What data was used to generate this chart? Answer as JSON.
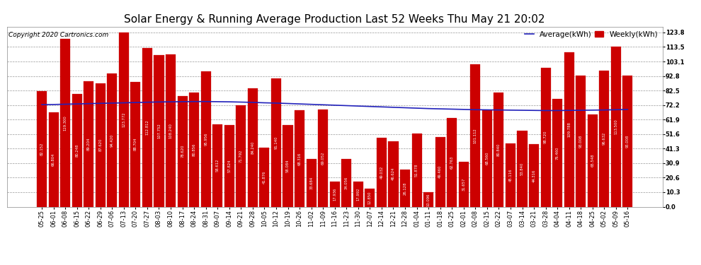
{
  "title": "Solar Energy & Running Average Production Last 52 Weeks Thu May 21 20:02",
  "copyright": "Copyright 2020 Cartronics.com",
  "legend_avg": "Average(kWh)",
  "legend_weekly": "Weekly(kWh)",
  "categories": [
    "05-25",
    "06-01",
    "06-08",
    "06-15",
    "06-22",
    "06-29",
    "07-06",
    "07-13",
    "07-20",
    "07-27",
    "08-03",
    "08-10",
    "08-17",
    "08-24",
    "08-31",
    "09-07",
    "09-14",
    "09-21",
    "09-28",
    "10-05",
    "10-12",
    "10-19",
    "10-26",
    "11-02",
    "11-09",
    "11-16",
    "11-23",
    "11-30",
    "12-07",
    "12-14",
    "12-21",
    "12-28",
    "01-04",
    "01-11",
    "01-18",
    "01-25",
    "02-01",
    "02-08",
    "02-15",
    "02-22",
    "03-07",
    "03-14",
    "03-21",
    "03-28",
    "04-04",
    "04-11",
    "04-18",
    "04-25",
    "05-02",
    "05-09",
    "05-16"
  ],
  "bar_values": [
    82.152,
    66.804,
    119.3,
    80.248,
    89.204,
    87.62,
    94.42,
    123.772,
    88.704,
    112.812,
    107.752,
    108.24,
    78.62,
    80.856,
    95.956,
    58.612,
    57.824,
    71.792,
    84.24,
    41.876,
    91.14,
    58.084,
    68.316,
    33.684,
    69.052,
    17.936,
    34.056,
    17.992,
    12.85,
    49.032,
    46.624,
    26.128,
    51.878,
    10.096,
    49.46,
    62.763,
    31.657,
    101.112,
    68.56,
    80.84,
    45.116,
    53.84,
    44.316,
    98.72,
    76.46,
    109.788,
    93.008,
    65.548,
    96.632,
    113.5,
    93.008
  ],
  "avg_values": [
    72.5,
    72.6,
    72.8,
    73.0,
    73.2,
    73.4,
    73.6,
    73.8,
    74.0,
    74.2,
    74.4,
    74.5,
    74.6,
    74.7,
    74.7,
    74.6,
    74.5,
    74.3,
    74.1,
    73.8,
    73.6,
    73.3,
    73.0,
    72.7,
    72.4,
    72.1,
    71.8,
    71.5,
    71.2,
    70.9,
    70.6,
    70.3,
    70.0,
    69.7,
    69.5,
    69.3,
    69.1,
    68.9,
    68.8,
    68.7,
    68.6,
    68.5,
    68.4,
    68.3,
    68.3,
    68.4,
    68.5,
    68.6,
    68.7,
    68.9,
    69.1
  ],
  "bar_color": "#cc0000",
  "avg_line_color": "#2222bb",
  "bar_edge_color": "#cc0000",
  "background_color": "#ffffff",
  "grid_color": "#999999",
  "yticks": [
    0.0,
    10.3,
    20.6,
    30.9,
    41.3,
    51.6,
    61.9,
    72.2,
    82.5,
    92.8,
    103.1,
    113.5,
    123.8
  ],
  "ylim": [
    0,
    128
  ],
  "title_fontsize": 11,
  "copyright_fontsize": 6.5,
  "tick_fontsize": 6,
  "legend_fontsize": 7.5
}
